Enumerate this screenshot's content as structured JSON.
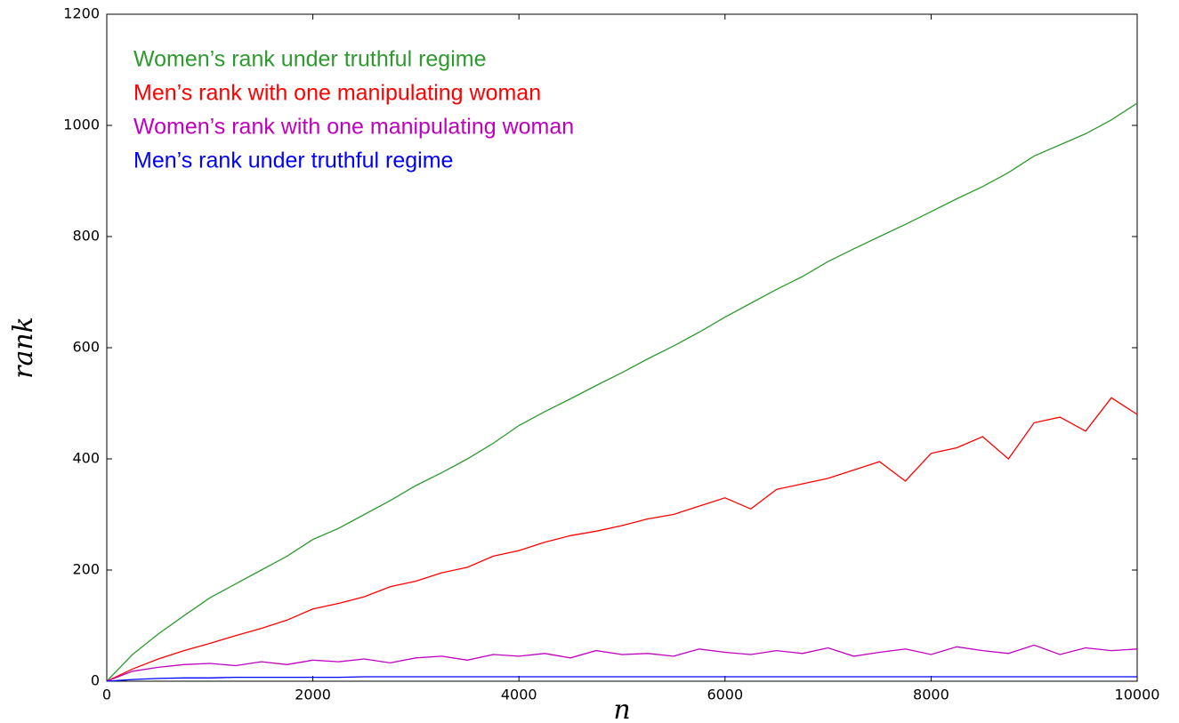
{
  "chart_data": {
    "type": "line",
    "xlabel": "n",
    "ylabel": "rank",
    "x": [
      0,
      250,
      500,
      750,
      1000,
      1250,
      1500,
      1750,
      2000,
      2250,
      2500,
      2750,
      3000,
      3250,
      3500,
      3750,
      4000,
      4250,
      4500,
      4750,
      5000,
      5250,
      5500,
      5750,
      6000,
      6250,
      6500,
      6750,
      7000,
      7250,
      7500,
      7750,
      8000,
      8250,
      8500,
      8750,
      9000,
      9250,
      9500,
      9750,
      10000
    ],
    "series": [
      {
        "name": "Women’s rank under truthful  regime",
        "color": "#2e9a2e",
        "values": [
          0,
          48,
          85,
          118,
          150,
          175,
          200,
          225,
          255,
          275,
          300,
          325,
          352,
          375,
          400,
          428,
          460,
          485,
          508,
          532,
          555,
          580,
          603,
          628,
          655,
          680,
          705,
          728,
          755,
          778,
          800,
          822,
          845,
          868,
          890,
          915,
          945,
          965,
          985,
          1010,
          1040
        ]
      },
      {
        "name": "Men’s rank with one manipulating woman",
        "color": "#ff0000",
        "values": [
          0,
          22,
          40,
          55,
          68,
          82,
          95,
          110,
          130,
          140,
          152,
          170,
          180,
          195,
          205,
          225,
          235,
          250,
          262,
          270,
          280,
          292,
          300,
          315,
          330,
          310,
          345,
          355,
          365,
          380,
          395,
          360,
          410,
          420,
          440,
          400,
          465,
          475,
          450,
          510,
          480
        ]
      },
      {
        "name": "Women’s rank with one manipulating woman",
        "color": "#bf00bf",
        "values": [
          0,
          18,
          25,
          30,
          32,
          28,
          35,
          30,
          38,
          35,
          40,
          33,
          42,
          45,
          38,
          48,
          45,
          50,
          42,
          55,
          48,
          50,
          45,
          58,
          52,
          48,
          55,
          50,
          60,
          45,
          52,
          58,
          48,
          62,
          55,
          50,
          65,
          48,
          60,
          55,
          58
        ]
      },
      {
        "name": "Men’s rank under truthful  regime",
        "color": "#0000ff",
        "values": [
          0,
          3,
          5,
          6,
          6,
          7,
          7,
          7,
          7,
          7,
          8,
          8,
          8,
          8,
          8,
          8,
          8,
          8,
          8,
          8,
          8,
          8,
          8,
          8,
          8,
          8,
          8,
          8,
          8,
          8,
          8,
          8,
          8,
          8,
          8,
          8,
          8,
          8,
          8,
          8,
          8
        ]
      }
    ],
    "xlim": [
      0,
      10000
    ],
    "xticks": [
      0,
      2000,
      4000,
      6000,
      8000,
      10000
    ],
    "ylim": [
      0,
      1200
    ],
    "yticks": [
      0,
      200,
      400,
      600,
      800,
      1000,
      1200
    ]
  }
}
